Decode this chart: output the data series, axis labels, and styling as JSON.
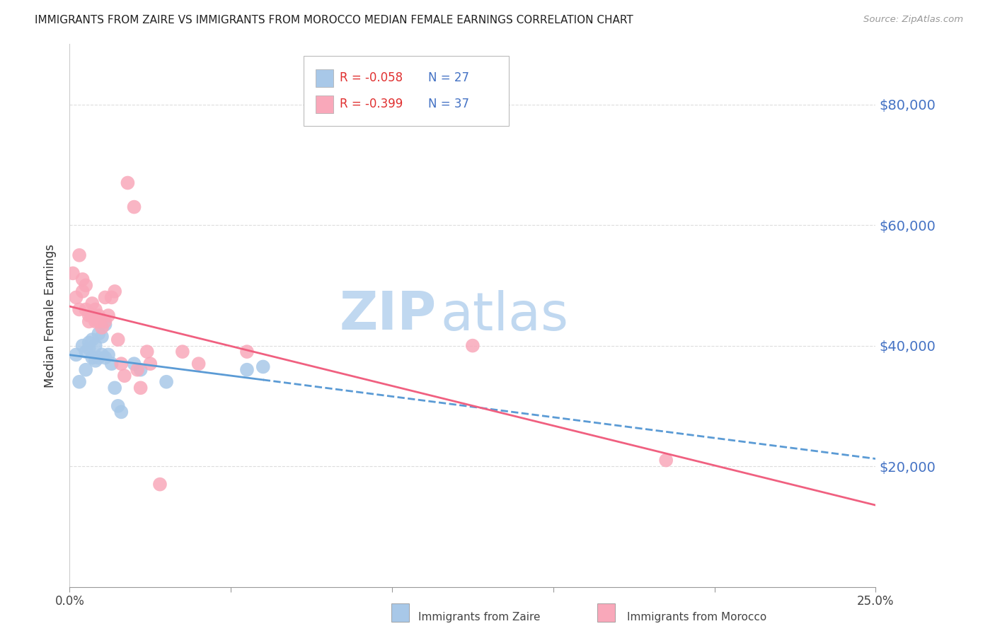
{
  "title": "IMMIGRANTS FROM ZAIRE VS IMMIGRANTS FROM MOROCCO MEDIAN FEMALE EARNINGS CORRELATION CHART",
  "source": "Source: ZipAtlas.com",
  "ylabel": "Median Female Earnings",
  "xlim": [
    0.0,
    0.25
  ],
  "ylim": [
    0,
    90000
  ],
  "yticks": [
    20000,
    40000,
    60000,
    80000
  ],
  "ytick_labels": [
    "$20,000",
    "$40,000",
    "$60,000",
    "$80,000"
  ],
  "xtick_positions": [
    0.0,
    0.05,
    0.1,
    0.15,
    0.2,
    0.25
  ],
  "xtick_labels": [
    "0.0%",
    "",
    "",
    "",
    "",
    "25.0%"
  ],
  "legend_r_zaire": "R = -0.058",
  "legend_n_zaire": "N = 27",
  "legend_r_morocco": "R = -0.399",
  "legend_n_morocco": "N = 37",
  "label_zaire": "Immigrants from Zaire",
  "label_morocco": "Immigrants from Morocco",
  "color_zaire": "#a8c8e8",
  "color_morocco": "#f9a8ba",
  "color_zaire_line": "#5b9bd5",
  "color_morocco_line": "#f06080",
  "color_right_axis": "#4472c4",
  "color_title": "#222222",
  "color_source": "#999999",
  "watermark_zip": "ZIP",
  "watermark_atlas": "atlas",
  "watermark_color": "#c0d8f0",
  "zaire_x": [
    0.002,
    0.003,
    0.004,
    0.005,
    0.005,
    0.006,
    0.006,
    0.007,
    0.007,
    0.008,
    0.008,
    0.009,
    0.009,
    0.01,
    0.01,
    0.011,
    0.011,
    0.012,
    0.013,
    0.014,
    0.015,
    0.016,
    0.02,
    0.022,
    0.03,
    0.055,
    0.06
  ],
  "zaire_y": [
    38500,
    34000,
    40000,
    39000,
    36000,
    40500,
    39500,
    38000,
    41000,
    37500,
    40000,
    38000,
    42000,
    38500,
    41500,
    38000,
    43500,
    38500,
    37000,
    33000,
    30000,
    29000,
    37000,
    36000,
    34000,
    36000,
    36500
  ],
  "morocco_x": [
    0.001,
    0.002,
    0.003,
    0.003,
    0.004,
    0.004,
    0.005,
    0.005,
    0.006,
    0.006,
    0.007,
    0.007,
    0.008,
    0.008,
    0.009,
    0.009,
    0.01,
    0.011,
    0.011,
    0.012,
    0.013,
    0.014,
    0.015,
    0.016,
    0.017,
    0.018,
    0.02,
    0.021,
    0.022,
    0.024,
    0.025,
    0.028,
    0.035,
    0.04,
    0.055,
    0.125,
    0.185
  ],
  "morocco_y": [
    52000,
    48000,
    55000,
    46000,
    49000,
    51000,
    50000,
    46000,
    45000,
    44000,
    45000,
    47000,
    44000,
    46000,
    45000,
    44000,
    43000,
    44000,
    48000,
    45000,
    48000,
    49000,
    41000,
    37000,
    35000,
    67000,
    63000,
    36000,
    33000,
    39000,
    37000,
    17000,
    39000,
    37000,
    39000,
    40000,
    21000
  ]
}
